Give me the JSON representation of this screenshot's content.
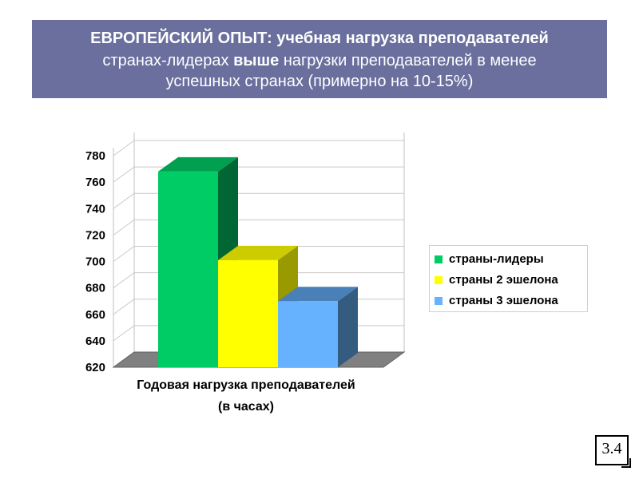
{
  "title": {
    "line1": "ЕВРОПЕЙСКИЙ ОПЫТ: учебная нагрузка преподавателей",
    "line2_before": "странах-лидерах ",
    "line2_bold": "выше",
    "line2_after": " нагрузки преподавателей в менее",
    "line3": "успешных странах (примерно на 10-15%)"
  },
  "chart_data": {
    "type": "bar",
    "categories": [
      "Годовая нагрузка преподавателей (в часах)"
    ],
    "category_lines": [
      "Годовая нагрузка преподавателей",
      "(в часах)"
    ],
    "series": [
      {
        "name": "страны-лидеры",
        "values": [
          768
        ],
        "color": "#00cc66",
        "top_color": "#00a050",
        "side_color": "#006633"
      },
      {
        "name": "страны 2 эшелона",
        "values": [
          701
        ],
        "color": "#ffff00",
        "top_color": "#cccc00",
        "side_color": "#999900"
      },
      {
        "name": "страны 3 эшелона",
        "values": [
          670
        ],
        "color": "#66b2ff",
        "top_color": "#4a80b8",
        "side_color": "#335c80"
      }
    ],
    "yticks": [
      "620",
      "640",
      "660",
      "680",
      "700",
      "720",
      "740",
      "760",
      "780"
    ],
    "ylim": [
      620,
      780
    ],
    "grid": true,
    "legend": "right",
    "three_d": true
  },
  "slide_number": "3.4"
}
